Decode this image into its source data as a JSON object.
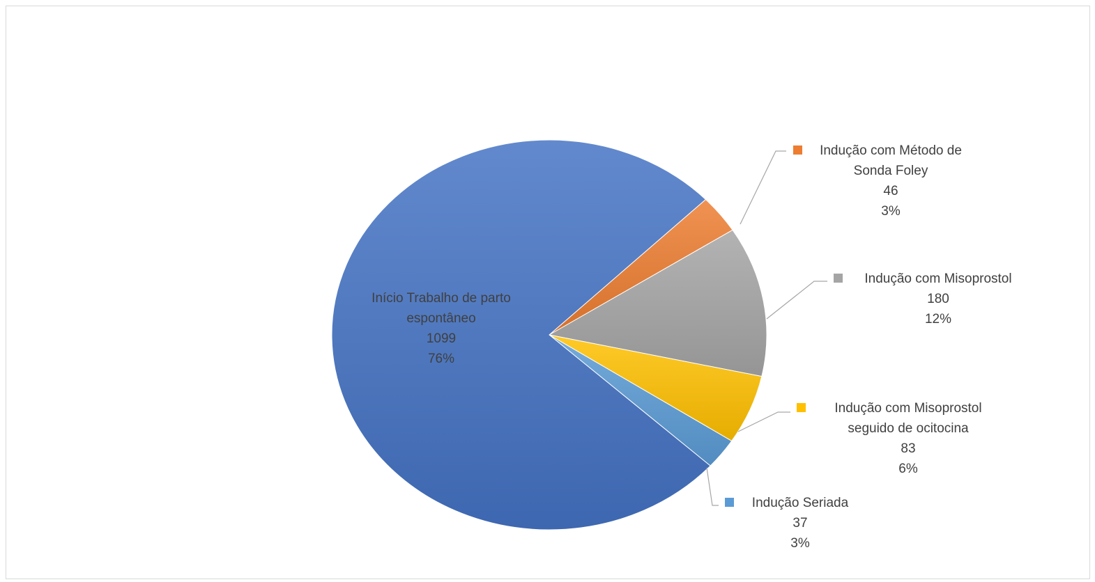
{
  "chart_data": {
    "type": "pie",
    "title": "",
    "slices": [
      {
        "name": "Indução com Método de Sonda Foley",
        "lines": [
          "Indução com Método de",
          "Sonda Foley"
        ],
        "value": 46,
        "percent_label": "3%",
        "color": "#ed7d31",
        "show_legend_key": true
      },
      {
        "name": "Indução com Misoprostol",
        "lines": [
          "Indução com Misoprostol"
        ],
        "value": 180,
        "percent_label": "12%",
        "color": "#a5a5a5",
        "show_legend_key": true
      },
      {
        "name": "Indução com Misoprostol seguido de ocitocina",
        "lines": [
          "Indução com Misoprostol",
          "seguido de ocitocina"
        ],
        "value": 83,
        "percent_label": "6%",
        "color": "#ffc000",
        "show_legend_key": true
      },
      {
        "name": "Indução Seriada",
        "lines": [
          "Indução Seriada"
        ],
        "value": 37,
        "percent_label": "3%",
        "color": "#5b9bd5",
        "show_legend_key": true
      },
      {
        "name": "Início Trabalho de parto espontâneo",
        "lines": [
          "Início Trabalho de parto",
          "espontâneo"
        ],
        "value": 1099,
        "percent_label": "76%",
        "color": "#4472c4",
        "show_legend_key": false
      }
    ],
    "legend": "none",
    "data_labels": "outside with leader lines"
  }
}
